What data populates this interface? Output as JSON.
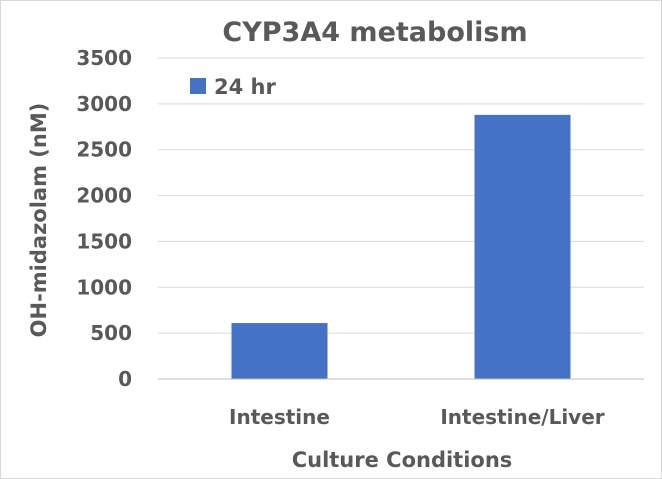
{
  "chart_data": {
    "type": "bar",
    "title": "CYP3A4 metabolism",
    "xlabel": "Culture Conditions",
    "ylabel": "OH-midazolam (nM)",
    "categories": [
      "Intestine",
      "Intestine/Liver"
    ],
    "series": [
      {
        "name": "24 hr",
        "values": [
          610,
          2880
        ],
        "color": "#4472c4"
      }
    ],
    "ylim": [
      0,
      3500
    ],
    "yticks": [
      0,
      500,
      1000,
      1500,
      2000,
      2500,
      3000,
      3500
    ],
    "grid": true,
    "legend_position": "top-left"
  }
}
